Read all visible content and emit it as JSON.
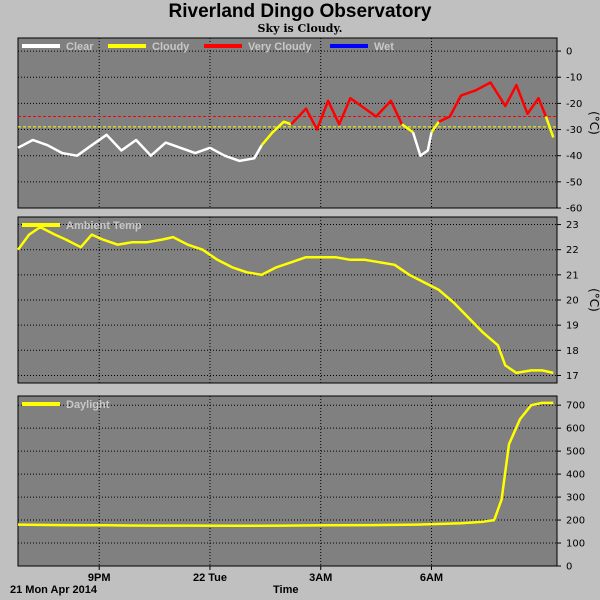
{
  "title": "Riverland Dingo Observatory",
  "subtitle": "Sky is Cloudy.",
  "footer": {
    "date": "21 Mon Apr 2014",
    "xlabel": "Time"
  },
  "x_ticks": [
    "9PM",
    "22 Tue",
    "3AM",
    "6AM"
  ],
  "chart_data": [
    {
      "type": "line",
      "name": "sky",
      "ylabel": "(°C)",
      "ylim": [
        -60,
        5
      ],
      "yticks": [
        0,
        -10,
        -20,
        -30,
        -40,
        -50,
        -60
      ],
      "thresholds": [
        {
          "value": -25,
          "color": "#ff0000"
        },
        {
          "value": -29,
          "color": "#ffff00"
        }
      ],
      "legend": [
        {
          "name": "Clear",
          "color": "#ffffff"
        },
        {
          "name": "Cloudy",
          "color": "#ffff00"
        },
        {
          "name": "Very Cloudy",
          "color": "#ff0000"
        },
        {
          "name": "Wet",
          "color": "#0000ff"
        }
      ],
      "series": [
        {
          "name": "Clear",
          "color": "#ffffff",
          "x": [
            18.8,
            19.2,
            19.6,
            20.0,
            20.4,
            20.8,
            21.2,
            21.6,
            22.0,
            22.4,
            22.8,
            23.2,
            23.6,
            24.0,
            24.4,
            24.8,
            25.2,
            25.4
          ],
          "y": [
            -37,
            -34,
            -36,
            -39,
            -40,
            -36,
            -32,
            -38,
            -34,
            -40,
            -35,
            -37,
            -39,
            -37,
            -40,
            -42,
            -41,
            -36
          ]
        },
        {
          "name": "Cloudy",
          "color": "#ffff00",
          "x": [
            25.4,
            25.7,
            26.0,
            26.2
          ],
          "y": [
            -36,
            -31,
            -27,
            -28
          ]
        },
        {
          "name": "Very Cloudy",
          "color": "#ff0000",
          "x": [
            26.2,
            26.6,
            26.9,
            27.2,
            27.5,
            27.8,
            28.1,
            28.5,
            28.9,
            29.2
          ],
          "y": [
            -28,
            -22,
            -30,
            -19,
            -28,
            -18,
            -21,
            -25,
            -19,
            -28
          ]
        },
        {
          "name": "Cloudy",
          "color": "#ffff00",
          "x": [
            29.2,
            29.5
          ],
          "y": [
            -28,
            -31
          ]
        },
        {
          "name": "Clear",
          "color": "#ffffff",
          "x": [
            29.5,
            29.7,
            29.9,
            30.0
          ],
          "y": [
            -31,
            -40,
            -38,
            -31
          ]
        },
        {
          "name": "Cloudy",
          "color": "#ffff00",
          "x": [
            30.0,
            30.2
          ],
          "y": [
            -31,
            -27
          ]
        },
        {
          "name": "Very Cloudy",
          "color": "#ff0000",
          "x": [
            30.2,
            30.5,
            30.8,
            31.2,
            31.6,
            32.0,
            32.3,
            32.6,
            32.9,
            33.1
          ],
          "y": [
            -27,
            -25,
            -17,
            -15,
            -12,
            -21,
            -13,
            -24,
            -18,
            -25
          ]
        },
        {
          "name": "Cloudy",
          "color": "#ffff00",
          "x": [
            33.1,
            33.3
          ],
          "y": [
            -25,
            -33
          ]
        }
      ]
    },
    {
      "type": "line",
      "name": "Ambient Temp",
      "ylabel": "(°C)",
      "ylim": [
        16.7,
        23.3
      ],
      "yticks": [
        23,
        22,
        21,
        20,
        19,
        18,
        17
      ],
      "legend": [
        {
          "name": "Ambient Temp",
          "color": "#ffff00"
        }
      ],
      "series": [
        {
          "name": "Ambient Temp",
          "color": "#ffff00",
          "x": [
            18.8,
            19.1,
            19.4,
            19.8,
            20.1,
            20.5,
            20.8,
            21.1,
            21.5,
            21.9,
            22.3,
            22.7,
            23.0,
            23.4,
            23.8,
            24.2,
            24.6,
            25.0,
            25.4,
            25.8,
            26.2,
            26.6,
            27.0,
            27.4,
            27.8,
            28.2,
            28.6,
            29.0,
            29.4,
            29.8,
            30.2,
            30.6,
            31.0,
            31.4,
            31.8,
            32.0,
            32.3,
            32.7,
            33.0,
            33.3
          ],
          "y": [
            22.0,
            22.6,
            22.9,
            22.6,
            22.4,
            22.1,
            22.6,
            22.4,
            22.2,
            22.3,
            22.3,
            22.4,
            22.5,
            22.2,
            22.0,
            21.6,
            21.3,
            21.1,
            21.0,
            21.3,
            21.5,
            21.7,
            21.7,
            21.7,
            21.6,
            21.6,
            21.5,
            21.4,
            21.0,
            20.7,
            20.4,
            19.9,
            19.3,
            18.7,
            18.2,
            17.4,
            17.1,
            17.2,
            17.2,
            17.1
          ]
        }
      ]
    },
    {
      "type": "line",
      "name": "Daylight",
      "ylim": [
        0,
        740
      ],
      "yticks": [
        700,
        600,
        500,
        400,
        300,
        200,
        100,
        0
      ],
      "legend": [
        {
          "name": "Daylight",
          "color": "#ffff00"
        }
      ],
      "series": [
        {
          "name": "Daylight",
          "color": "#ffff00",
          "x": [
            18.8,
            20.0,
            21.2,
            22.4,
            23.6,
            24.8,
            26.0,
            27.2,
            28.4,
            29.6,
            30.8,
            31.4,
            31.7,
            31.9,
            32.1,
            32.4,
            32.7,
            33.0,
            33.3
          ],
          "y": [
            180,
            178,
            177,
            176,
            176,
            175,
            176,
            177,
            178,
            180,
            186,
            193,
            200,
            290,
            530,
            640,
            700,
            710,
            710
          ]
        }
      ]
    }
  ]
}
